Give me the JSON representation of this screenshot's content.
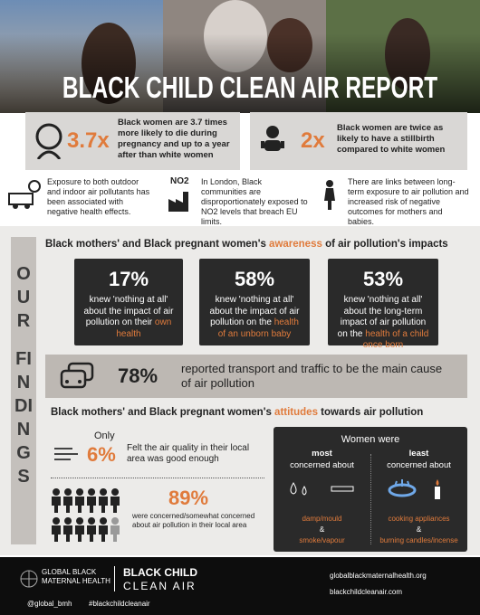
{
  "header": {
    "title": "BLACK CHILD CLEAN AIR REPORT"
  },
  "stats": [
    {
      "value": "3.7x",
      "text": "Black women are 3.7 times more likely to die during pregnancy and up to a year after than white women"
    },
    {
      "value": "2x",
      "text": "Black women are twice as likely to have a stillbirth compared to white women"
    }
  ],
  "facts": [
    {
      "text": "Exposure to both outdoor and indoor air pollutants has been associated with negative health effects."
    },
    {
      "icon_label": "NO2",
      "text": "In London, Black communities are disproportionately exposed to NO2 levels that breach EU limits."
    },
    {
      "text": "There are links between long-term exposure to air pollution and increased risk of negative outcomes for mothers and babies."
    }
  ],
  "findings": {
    "side_label": [
      "OUR",
      "FINDINGS"
    ],
    "awareness": {
      "heading": [
        "Black mothers' and Black pregnant women's ",
        "awareness",
        " of air pollution's impacts"
      ],
      "cards": [
        {
          "value": "17%",
          "text": "knew 'nothing at all' about the impact of air pollution on their",
          "highlight": "own health"
        },
        {
          "value": "58%",
          "text": "knew 'nothing at all' about the impact of air pollution on the",
          "highlight": "health of an unborn baby"
        },
        {
          "value": "53%",
          "text": "knew 'nothing at all' about the long-term impact of air pollution on the",
          "highlight": "health of a child once born"
        }
      ]
    },
    "transport": {
      "value": "78%",
      "text": "reported transport and traffic to be the main cause of air pollution"
    },
    "attitudes": {
      "heading": [
        "Black mothers' and Black pregnant women's ",
        "attitudes",
        " towards air pollution"
      ],
      "only": "Only",
      "air_quality": {
        "value": "6%",
        "text": "Felt the air quality in their local area was good enough"
      },
      "concerned": {
        "value": "89%",
        "text": "were concerned/somewhat concerned about air pollution in their local area"
      },
      "women": {
        "title": "Women were",
        "most": {
          "label": "most",
          "sub": "concerned about",
          "items": [
            "damp/mould",
            "&",
            "smoke/vapour"
          ]
        },
        "least": {
          "label": "least",
          "sub": "concerned about",
          "items": [
            "cooking appliances",
            "&",
            "burning candles/incense"
          ]
        }
      }
    }
  },
  "footer": {
    "org": "GLOBAL BLACK MATERNAL HEALTH",
    "brand": [
      "BLACK CHILD",
      "CLEAN AIR"
    ],
    "twitter": "@global_bmh",
    "hashtag": "#blackchildcleanair",
    "links": [
      "globalblackmaternalhealth.org",
      "blackchildcleanair.com"
    ]
  }
}
